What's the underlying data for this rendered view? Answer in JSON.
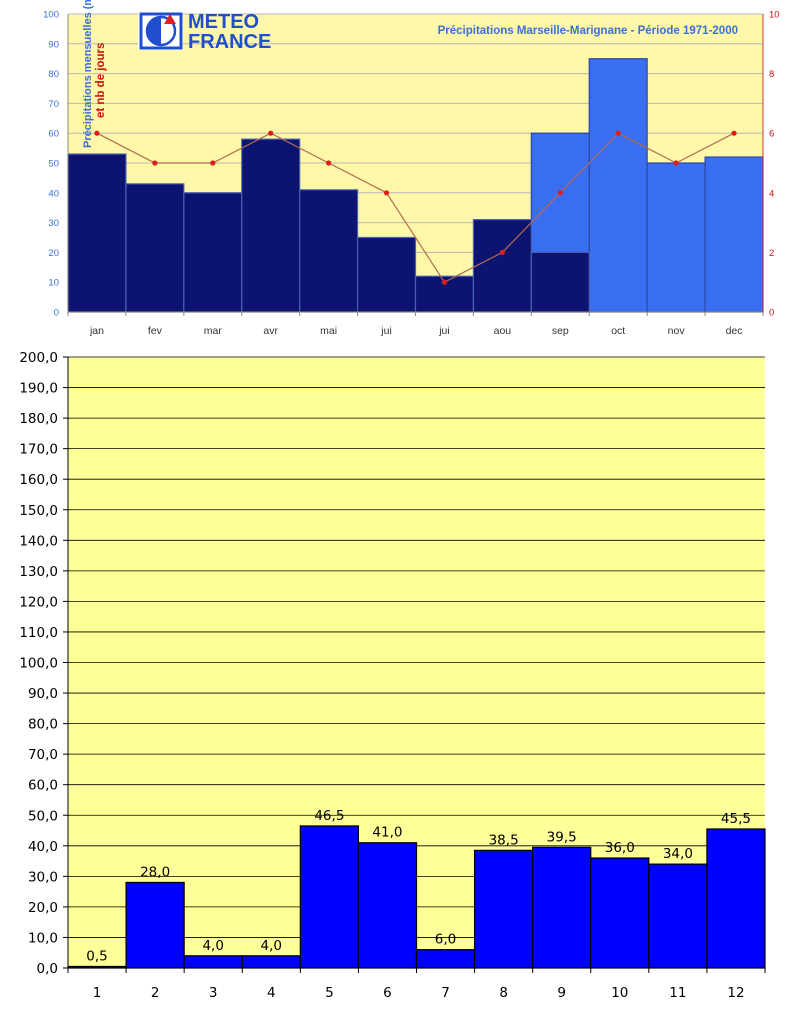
{
  "logo": {
    "line1": "METEO",
    "line2": "FRANCE"
  },
  "colors": {
    "plot_bg": "#fff8a8",
    "dark_bar": "#0c1470",
    "light_bar": "#3a6ef0",
    "line": "#b06a55",
    "dot": "#e01b1b",
    "bottom_plot_bg": "#ffff99",
    "bottom_bar": "#0000ff"
  },
  "chart_data": [
    {
      "type": "bar",
      "title": "Précipitations Marseille-Marignane - Période 1971-2000",
      "ylabel": "Précipitations mensuelles (mm)",
      "y2label": "et nb de jours",
      "categories": [
        "jan",
        "fev",
        "mar",
        "avr",
        "mai",
        "jui",
        "jui",
        "aou",
        "sep",
        "oct",
        "nov",
        "dec"
      ],
      "ylim": [
        0,
        100
      ],
      "y_ticks": [
        "0",
        "10",
        "20",
        "30",
        "40",
        "50",
        "60",
        "70",
        "80",
        "90",
        "100"
      ],
      "y2lim": [
        0,
        10
      ],
      "y2_ticks": [
        "0",
        "2",
        "4",
        "6",
        "8",
        "10"
      ],
      "grid": true,
      "series": [
        {
          "values": [
            53,
            43,
            40,
            58,
            41,
            25,
            12,
            31,
            20,
            null,
            null,
            null
          ]
        },
        {
          "values": [
            null,
            null,
            null,
            null,
            null,
            null,
            null,
            null,
            60,
            85,
            50,
            52
          ]
        },
        {
          "axis": "right",
          "values": [
            6,
            5,
            5,
            6,
            5,
            4,
            1,
            2,
            4,
            6,
            5,
            6
          ]
        }
      ]
    },
    {
      "type": "bar",
      "categories": [
        "1",
        "2",
        "3",
        "4",
        "5",
        "6",
        "7",
        "8",
        "9",
        "10",
        "11",
        "12"
      ],
      "values": [
        0.5,
        28.0,
        4.0,
        4.0,
        46.5,
        41.0,
        6.0,
        38.5,
        39.5,
        36.0,
        34.0,
        45.5
      ],
      "data_labels": [
        "0,5",
        "28,0",
        "4,0",
        "4,0",
        "46,5",
        "41,0",
        "6,0",
        "38,5",
        "39,5",
        "36,0",
        "34,0",
        "45,5"
      ],
      "ylim": [
        0,
        200
      ],
      "y_ticks": [
        "0,0",
        "10,0",
        "20,0",
        "30,0",
        "40,0",
        "50,0",
        "60,0",
        "70,0",
        "80,0",
        "90,0",
        "100,0",
        "110,0",
        "120,0",
        "130,0",
        "140,0",
        "150,0",
        "160,0",
        "170,0",
        "180,0",
        "190,0",
        "200,0"
      ],
      "grid": true
    }
  ]
}
